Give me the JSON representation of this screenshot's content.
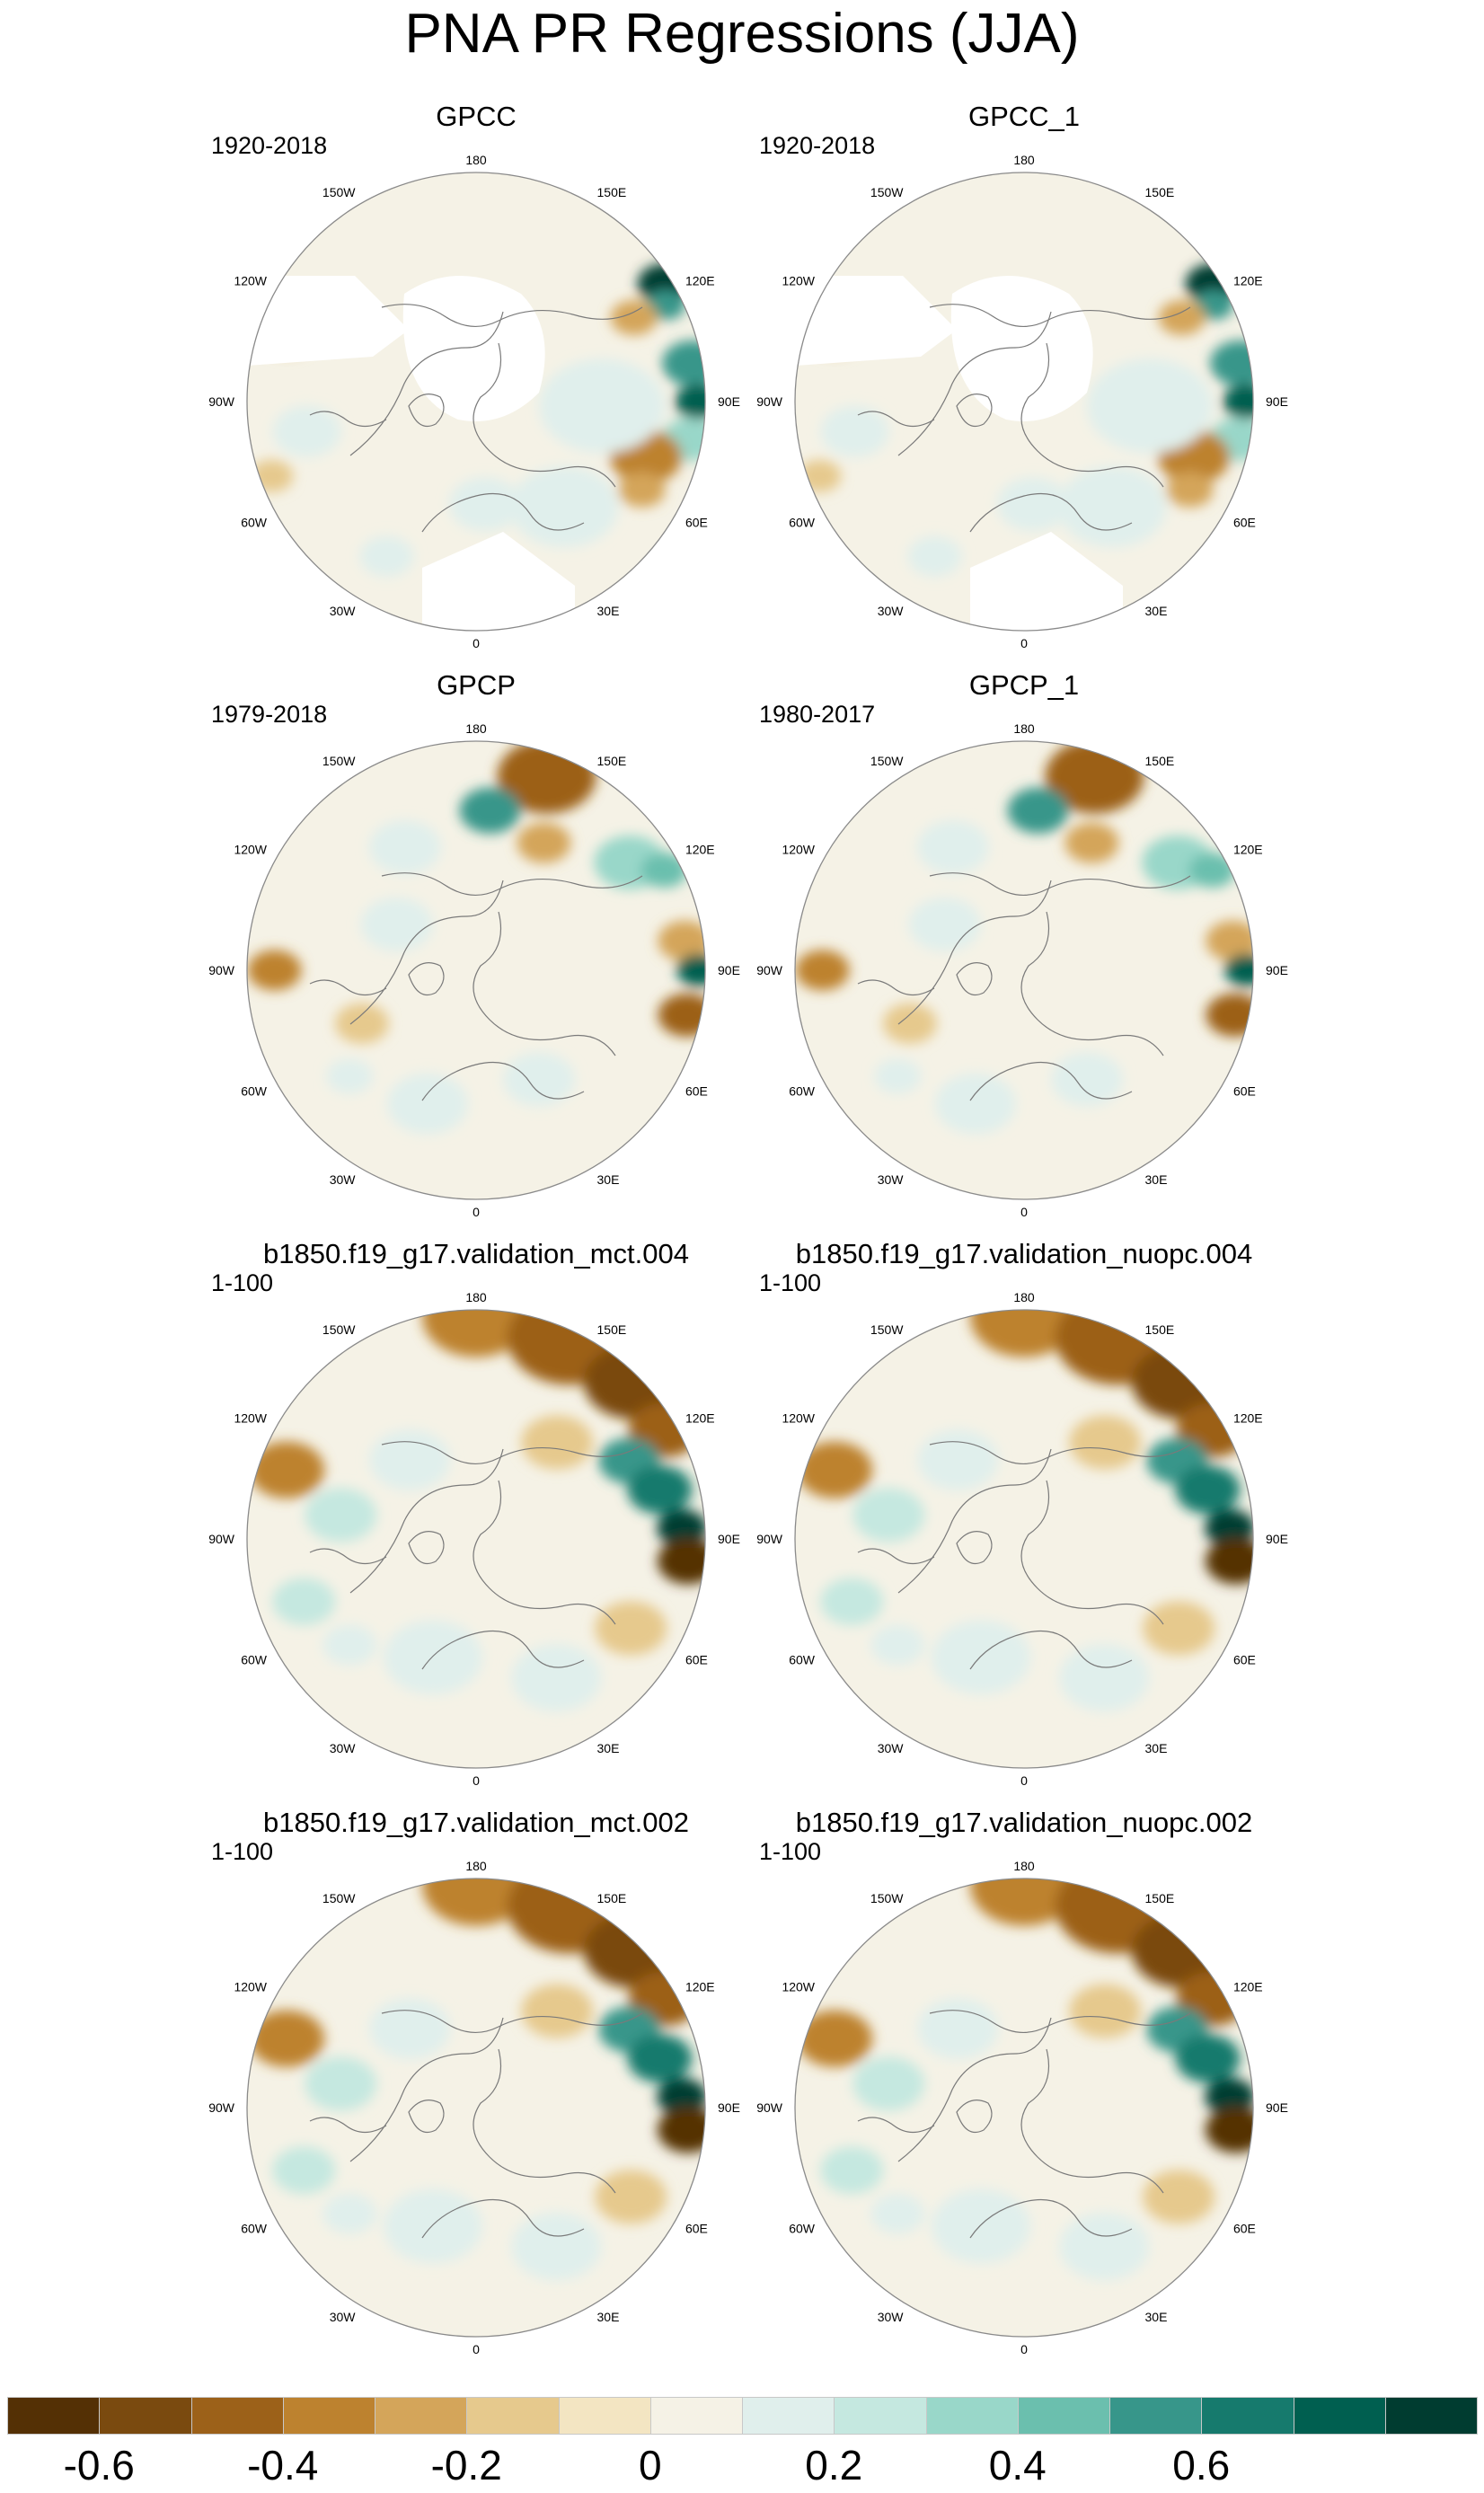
{
  "figure": {
    "title": "PNA PR Regressions (JJA)"
  },
  "panels": [
    {
      "id": "gpcc",
      "title": "GPCC",
      "period": "1920-2018",
      "pattern": "obs_gpcc"
    },
    {
      "id": "gpcc_1",
      "title": "GPCC_1",
      "period": "1920-2018",
      "pattern": "obs_gpcc"
    },
    {
      "id": "gpcp",
      "title": "GPCP",
      "period": "1979-2018",
      "pattern": "obs_gpcp"
    },
    {
      "id": "gpcp_1",
      "title": "GPCP_1",
      "period": "1980-2017",
      "pattern": "obs_gpcp"
    },
    {
      "id": "mct004",
      "title": "b1850.f19_g17.validation_mct.004",
      "period": "1-100",
      "pattern": "model"
    },
    {
      "id": "nuopc004",
      "title": "b1850.f19_g17.validation_nuopc.004",
      "period": "1-100",
      "pattern": "model"
    },
    {
      "id": "mct002",
      "title": "b1850.f19_g17.validation_mct.002",
      "period": "1-100",
      "pattern": "model"
    },
    {
      "id": "nuopc002",
      "title": "b1850.f19_g17.validation_nuopc.002",
      "period": "1-100",
      "pattern": "model"
    }
  ],
  "map_labels": {
    "lon": [
      "180",
      "150E",
      "120E",
      "90E",
      "60E",
      "30E",
      "0",
      "30W",
      "60W",
      "90W",
      "120W",
      "150W"
    ]
  },
  "chart_data": {
    "type": "heatmap",
    "projection": "north polar stereographic",
    "variable": "PR",
    "season": "JJA",
    "colorbar": {
      "levels": [
        -0.7,
        -0.6,
        -0.5,
        -0.4,
        -0.3,
        -0.2,
        -0.1,
        0,
        0.1,
        0.2,
        0.3,
        0.4,
        0.5,
        0.6,
        0.7,
        0.8,
        0.9
      ],
      "tick_labels": [
        "-0.6",
        "-0.4",
        "-0.2",
        "0",
        "0.2",
        "0.4",
        "0.6"
      ],
      "tick_values": [
        -0.6,
        -0.4,
        -0.2,
        0,
        0.2,
        0.4,
        0.6
      ],
      "colors": [
        "#543005",
        "#7a4a0f",
        "#9c6119",
        "#bd822f",
        "#d4a55a",
        "#e6c98d",
        "#f3e5c2",
        "#f5f2e6",
        "#e0efec",
        "#c5e8e0",
        "#99d7c9",
        "#6bbfae",
        "#37968a",
        "#167a6d",
        "#005f50",
        "#003c30"
      ]
    }
  }
}
